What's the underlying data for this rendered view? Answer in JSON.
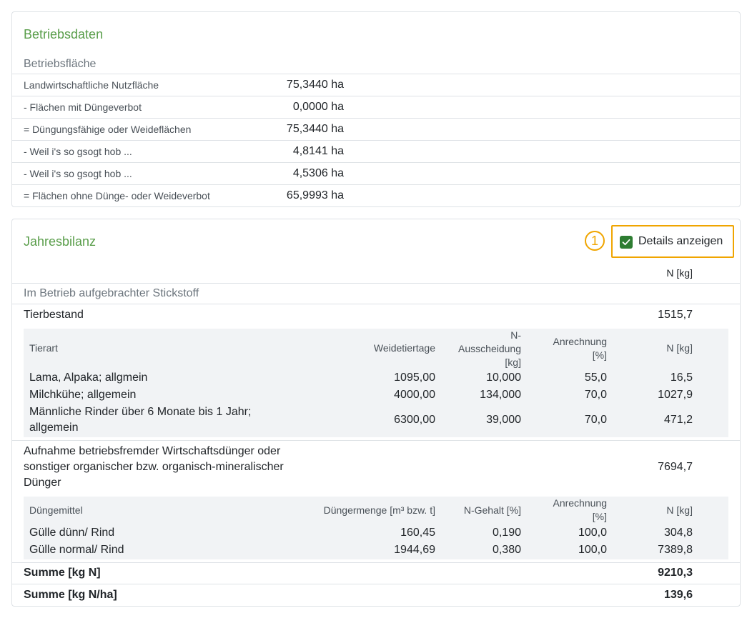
{
  "betriebsdaten": {
    "title": "Betriebsdaten",
    "section": "Betriebsfläche",
    "rows": [
      {
        "label": "Landwirtschaftliche Nutzfläche",
        "value": "75,3440 ha"
      },
      {
        "label": "- Flächen mit Düngeverbot",
        "value": "0,0000 ha"
      },
      {
        "label": "= Düngungsfähige oder Weideflächen",
        "value": "75,3440 ha"
      },
      {
        "label": "- Weil i's so gsogt hob ...",
        "value": "4,8141 ha"
      },
      {
        "label": "- Weil i's so gsogt hob ...",
        "value": "4,5306 ha"
      },
      {
        "label": "= Flächen ohne Dünge- oder Weideverbot",
        "value": "65,9993 ha"
      }
    ]
  },
  "jahresbilanz": {
    "title": "Jahresbilanz",
    "marker": "1",
    "details_label": "Details anzeigen",
    "details_checked": true,
    "n_header": "N [kg]",
    "section": "Im Betrieb aufgebrachter Stickstoff",
    "tierbestand": {
      "label": "Tierbestand",
      "value": "1515,7",
      "headers": {
        "tierart": "Tierart",
        "weidetiertage": "Weidetiertage",
        "ausscheidung": "N-Ausscheidung [kg]",
        "ausscheidung_l1": "N-",
        "ausscheidung_l2": "Ausscheidung",
        "ausscheidung_l3": "[kg]",
        "anrechnung_l1": "Anrechnung",
        "anrechnung_l2": "[%]",
        "n": "N [kg]"
      },
      "rows": [
        {
          "tierart": "Lama, Alpaka; allgmein",
          "tierart_l2": "",
          "weidetiertage": "1095,00",
          "ausscheidung": "10,000",
          "anrechnung": "55,0",
          "n": "16,5"
        },
        {
          "tierart": "Milchkühe; allgemein",
          "tierart_l2": "",
          "weidetiertage": "4000,00",
          "ausscheidung": "134,000",
          "anrechnung": "70,0",
          "n": "1027,9"
        },
        {
          "tierart": "Männliche Rinder über 6 Monate bis 1 Jahr;",
          "tierart_l2": "allgemein",
          "weidetiertage": "6300,00",
          "ausscheidung": "39,000",
          "anrechnung": "70,0",
          "n": "471,2"
        }
      ]
    },
    "aufnahme": {
      "label_l1": "Aufnahme betriebsfremder Wirtschaftsdünger oder",
      "label_l2": "sonstiger organischer bzw. organisch-mineralischer",
      "label_l3": "Dünger",
      "value": "7694,7",
      "headers": {
        "duengemittel": "Düngemittel",
        "menge": "Düngermenge [m³ bzw. t]",
        "gehalt": "N-Gehalt [%]",
        "anrechnung_l1": "Anrechnung",
        "anrechnung_l2": "[%]",
        "n": "N [kg]"
      },
      "rows": [
        {
          "duengemittel": "Gülle dünn/ Rind",
          "menge": "160,45",
          "gehalt": "0,190",
          "anrechnung": "100,0",
          "n": "304,8"
        },
        {
          "duengemittel": "Gülle normal/ Rind",
          "menge": "1944,69",
          "gehalt": "0,380",
          "anrechnung": "100,0",
          "n": "7389,8"
        }
      ]
    },
    "summe_n": {
      "label": "Summe [kg N]",
      "value": "9210,3"
    },
    "summe_nha": {
      "label": "Summe [kg N/ha]",
      "value": "139,6"
    }
  },
  "colors": {
    "accent_green": "#5a9e4b",
    "highlight_orange": "#f0a500",
    "checkbox_green": "#2e7d32"
  }
}
